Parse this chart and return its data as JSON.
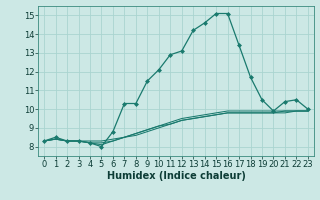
{
  "title": "",
  "xlabel": "Humidex (Indice chaleur)",
  "background_color": "#cce8e5",
  "grid_color": "#aad4d0",
  "line_color": "#1a7a6e",
  "xlim": [
    -0.5,
    23.5
  ],
  "ylim": [
    7.5,
    15.5
  ],
  "xticks": [
    0,
    1,
    2,
    3,
    4,
    5,
    6,
    7,
    8,
    9,
    10,
    11,
    12,
    13,
    14,
    15,
    16,
    17,
    18,
    19,
    20,
    21,
    22,
    23
  ],
  "yticks": [
    8,
    9,
    10,
    11,
    12,
    13,
    14,
    15
  ],
  "series": [
    [
      8.3,
      8.5,
      8.3,
      8.3,
      8.2,
      8.0,
      8.8,
      10.3,
      10.3,
      11.5,
      12.1,
      12.9,
      13.1,
      14.2,
      14.6,
      15.1,
      15.1,
      13.4,
      11.7,
      10.5,
      9.9,
      10.4,
      10.5,
      10.0
    ],
    [
      8.3,
      8.4,
      8.3,
      8.3,
      8.3,
      8.3,
      8.4,
      8.5,
      8.7,
      8.9,
      9.1,
      9.3,
      9.5,
      9.6,
      9.7,
      9.8,
      9.9,
      9.9,
      9.9,
      9.9,
      9.9,
      9.9,
      9.9,
      9.9
    ],
    [
      8.3,
      8.4,
      8.3,
      8.3,
      8.2,
      8.2,
      8.3,
      8.5,
      8.6,
      8.8,
      9.0,
      9.2,
      9.4,
      9.5,
      9.6,
      9.7,
      9.8,
      9.8,
      9.8,
      9.8,
      9.8,
      9.8,
      9.9,
      9.9
    ],
    [
      8.3,
      8.4,
      8.3,
      8.3,
      8.2,
      8.1,
      8.3,
      8.5,
      8.7,
      8.9,
      9.1,
      9.2,
      9.4,
      9.5,
      9.6,
      9.7,
      9.8,
      9.8,
      9.8,
      9.8,
      9.8,
      9.9,
      9.9,
      9.9
    ]
  ],
  "tick_fontsize": 6,
  "xlabel_fontsize": 7,
  "marker": "D",
  "markersize": 2.0,
  "linewidth_main": 0.9,
  "linewidth_trend": 0.75
}
